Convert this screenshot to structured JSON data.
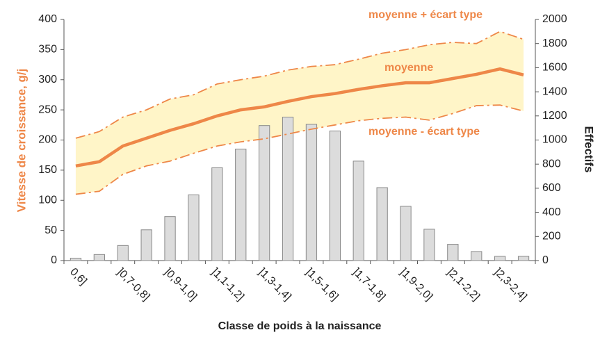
{
  "chart_data": {
    "type": "combo",
    "x_label": "Classe de poids à la naissance",
    "y_label": "Vitesse de croissance, g/j",
    "y2_label": "Effectifs",
    "categories": [
      "0,6]",
      null,
      "]0,7-0,8]",
      null,
      "]0,9-1,0]",
      null,
      "]1,1-1,2]",
      null,
      "]1,3-1,4]",
      null,
      "]1,5-1,6]",
      null,
      "]1,7-1,8]",
      null,
      "]1,9-2,0]",
      null,
      "]2,1-2,2]",
      null,
      "]2,3-2,4]",
      null
    ],
    "ylim": [
      0,
      400
    ],
    "yticks": [
      0,
      50,
      100,
      150,
      200,
      250,
      300,
      350,
      400
    ],
    "y2lim": [
      0,
      2000
    ],
    "y2ticks": [
      0,
      200,
      400,
      600,
      800,
      1000,
      1200,
      1400,
      1600,
      1800,
      2000
    ],
    "band_color": "#fff5c8",
    "series": [
      {
        "type": "bar",
        "axis": "y2",
        "color": "#dcdcdc",
        "values": [
          20,
          50,
          125,
          255,
          365,
          545,
          770,
          925,
          1120,
          1190,
          1130,
          1075,
          825,
          605,
          450,
          260,
          135,
          75,
          35,
          35
        ]
      },
      {
        "type": "line",
        "name": "moyenne + écart type",
        "color": "#ee8748",
        "style": "dashdot",
        "values": [
          203,
          214,
          238,
          250,
          268,
          275,
          293,
          300,
          306,
          316,
          322,
          325,
          334,
          344,
          350,
          358,
          362,
          360,
          380,
          367
        ]
      },
      {
        "type": "line",
        "name": "moyenne",
        "color": "#ee8748",
        "style": "solid",
        "values": [
          157,
          164,
          190,
          203,
          216,
          227,
          240,
          250,
          255,
          264,
          272,
          277,
          284,
          290,
          295,
          295,
          302,
          309,
          318,
          308
        ]
      },
      {
        "type": "line",
        "name": "moyenne - écart type",
        "color": "#ee8748",
        "style": "dashdot",
        "values": [
          110,
          115,
          143,
          157,
          165,
          178,
          190,
          197,
          202,
          210,
          218,
          225,
          232,
          236,
          238,
          233,
          244,
          257,
          258,
          248
        ]
      }
    ]
  }
}
